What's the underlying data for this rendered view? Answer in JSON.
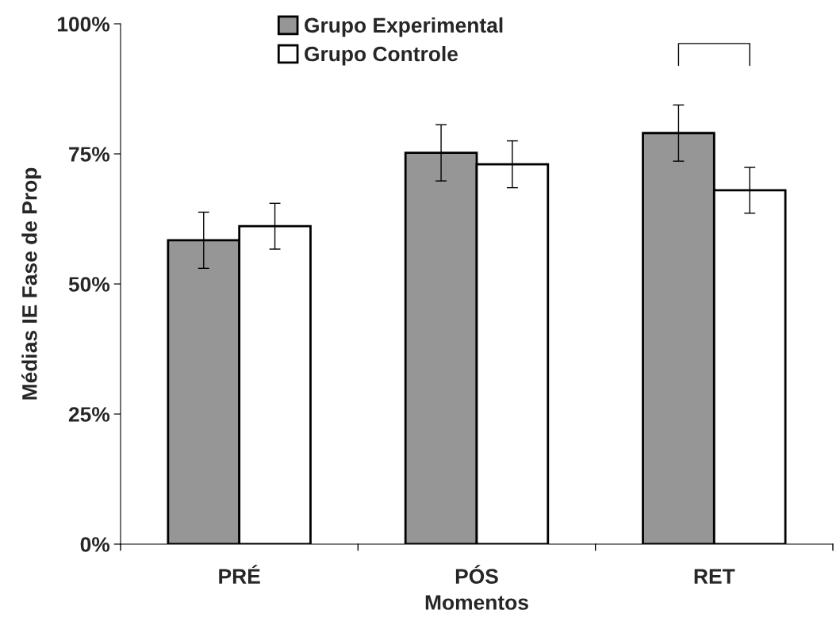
{
  "chart_data": {
    "type": "bar",
    "xlabel": "Momentos",
    "ylabel": "Médias IE Fase de Prop",
    "categories": [
      "PRÉ",
      "PÓS",
      "RET"
    ],
    "series": [
      {
        "name": "Grupo Experimental",
        "color": "#969696",
        "values": [
          58.4,
          75.2,
          79.0
        ],
        "errors": [
          5.4,
          5.4,
          5.4
        ]
      },
      {
        "name": "Grupo Controle",
        "color": "#ffffff",
        "values": [
          61.1,
          73.0,
          68.0
        ],
        "errors": [
          4.4,
          4.5,
          4.4
        ]
      }
    ],
    "ylim": [
      0,
      100
    ],
    "yticks": [
      {
        "value": 0,
        "label": "0%"
      },
      {
        "value": 25,
        "label": "25%"
      },
      {
        "value": 50,
        "label": "50%"
      },
      {
        "value": 75,
        "label": "75%"
      },
      {
        "value": 100,
        "label": "100%"
      }
    ],
    "grid": false,
    "legend": "top"
  }
}
